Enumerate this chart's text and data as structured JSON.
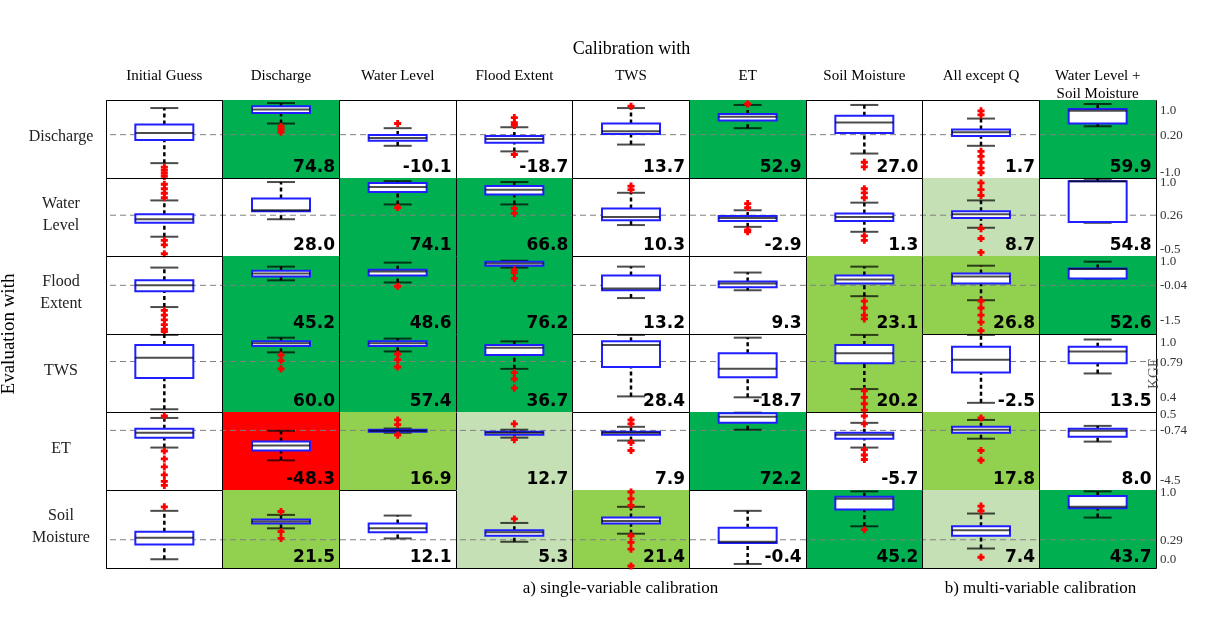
{
  "chart_data": [
    {
      "type": "box",
      "title": "Discharge",
      "xlabel": "Calibration with",
      "categories": [
        "Initial Guess",
        "Discharge",
        "Water Level",
        "Flood Extent",
        "TWS",
        "ET",
        "Soil Moisture",
        "All except Q",
        "Water Level + Soil Moisture"
      ],
      "ylim": [
        -1.2,
        1.32
      ],
      "yticks": [
        {
          "value": -1,
          "label": "-1.0"
        },
        {
          "value": 0.2,
          "label": "0.20"
        },
        {
          "value": 1,
          "label": "1.0"
        }
      ],
      "grid": "x",
      "boxes": [
        {
          "low": -0.72,
          "q1": 0.03,
          "median": 0.25,
          "q3": 0.53,
          "high": 1.06,
          "outliers": [
            -0.85,
            -0.95,
            -1.05,
            -1.15
          ]
        },
        {
          "low": 0.56,
          "q1": 0.9,
          "median": 1.01,
          "q3": 1.12,
          "high": 1.22,
          "outliers": [
            0.47,
            0.38,
            0.28
          ]
        },
        {
          "low": -0.16,
          "q1": 0.0,
          "median": 0.09,
          "q3": 0.19,
          "high": 0.41,
          "outliers": [
            0.56
          ]
        },
        {
          "low": -0.34,
          "q1": -0.06,
          "median": 0.06,
          "q3": 0.16,
          "high": 0.44,
          "outliers": [
            0.75,
            0.59,
            0.5,
            -0.44
          ]
        },
        {
          "low": -0.12,
          "q1": 0.22,
          "median": 0.31,
          "q3": 0.56,
          "high": 1.06,
          "outliers": [
            1.12
          ]
        },
        {
          "low": 0.41,
          "q1": 0.66,
          "median": 0.78,
          "q3": 0.87,
          "high": 1.16,
          "outliers": [
            1.19
          ]
        },
        {
          "low": -0.41,
          "q1": 0.25,
          "median": 0.59,
          "q3": 0.81,
          "high": 1.16,
          "outliers": [
            -0.69,
            -0.84
          ]
        },
        {
          "low": -0.16,
          "q1": 0.16,
          "median": 0.28,
          "q3": 0.37,
          "high": 0.72,
          "outliers": [
            0.97,
            0.84,
            -0.34,
            -0.5,
            -0.69,
            -0.88,
            -1.03
          ]
        },
        {
          "low": 0.47,
          "q1": 0.56,
          "median": 0.97,
          "q3": 1.03,
          "high": 1.19
        }
      ],
      "ref_lines": [
        {
          "axis": "y",
          "value": 0.2,
          "color": "#808080",
          "line_style": "dashed"
        }
      ],
      "bands": [
        {
          "axis": "x",
          "from": "Discharge",
          "to": "Discharge",
          "color": "#00b050"
        },
        {
          "axis": "x",
          "from": "ET",
          "to": "ET",
          "color": "#00b050"
        },
        {
          "axis": "x",
          "from": "Water Level + Soil Moisture",
          "to": "Water Level + Soil Moisture",
          "color": "#00b050"
        }
      ],
      "annotations": [
        "74.8",
        "-10.1",
        "-18.7",
        "13.7",
        "52.9",
        "27.0",
        "1.7",
        "59.9",
        "Evaluation with"
      ]
    },
    {
      "type": "box",
      "title": "Water Level",
      "tick_labels": "y",
      "categories": [
        "Initial Guess",
        "Discharge",
        "Water Level",
        "Flood Extent",
        "TWS",
        "ET",
        "Soil Moisture",
        "All except Q",
        "Water Level + Soil Moisture"
      ],
      "ylim": [
        -0.65,
        1.09
      ],
      "yticks": [
        -0.5,
        0.26,
        {
          "value": 1,
          "label": "1.0"
        }
      ],
      "grid": "x",
      "boxes": [
        {
          "low": -0.22,
          "q1": 0.09,
          "median": 0.17,
          "q3": 0.28,
          "high": 0.59,
          "outliers": [
            0.95,
            0.85,
            0.75,
            0.65,
            -0.3,
            -0.4,
            -0.6
          ]
        },
        {
          "low": 0.17,
          "q1": 0.35,
          "median": 0.37,
          "q3": 0.63,
          "high": 1.0
        },
        {
          "low": 0.5,
          "q1": 0.78,
          "median": 0.89,
          "q3": 0.98,
          "high": 1.02,
          "outliers": [
            0.43
          ]
        },
        {
          "low": 0.5,
          "q1": 0.72,
          "median": 0.83,
          "q3": 0.91,
          "high": 1.0,
          "outliers": [
            0.41,
            0.3
          ]
        },
        {
          "low": 0.04,
          "q1": 0.15,
          "median": 0.22,
          "q3": 0.41,
          "high": 0.76,
          "outliers": [
            0.91,
            0.83
          ]
        },
        {
          "low": 0.0,
          "q1": 0.13,
          "median": 0.2,
          "q3": 0.24,
          "high": 0.37,
          "outliers": [
            0.52,
            0.43,
            -0.07,
            -0.11
          ]
        },
        {
          "low": -0.11,
          "q1": 0.13,
          "median": 0.22,
          "q3": 0.3,
          "high": 0.54,
          "outliers": [
            0.85,
            0.76,
            0.65,
            -0.2,
            -0.3
          ]
        },
        {
          "low": -0.02,
          "q1": 0.2,
          "median": 0.28,
          "q3": 0.35,
          "high": 0.59,
          "outliers": [
            0.98,
            0.83,
            0.7,
            -0.04,
            -0.26,
            -0.57
          ]
        },
        {
          "low": 0.09,
          "q1": 0.11,
          "median": 1.02,
          "q3": 1.02,
          "high": 1.07
        }
      ],
      "ref_lines": [
        {
          "axis": "y",
          "value": 0.26,
          "color": "#808080",
          "line_style": "dashed"
        }
      ],
      "bands": [
        {
          "axis": "x",
          "from": "Water Level",
          "to": "Water Level",
          "color": "#00b050"
        },
        {
          "axis": "x",
          "from": "Flood Extent",
          "to": "Flood Extent",
          "color": "#00b050"
        },
        {
          "axis": "x",
          "from": "All except Q",
          "to": "All except Q",
          "color": "#c5e0b4"
        }
      ],
      "annotations": [
        "28.0",
        "74.1",
        "66.8",
        "10.3",
        "-2.9",
        "1.3",
        "8.7",
        "54.8"
      ]
    },
    {
      "type": "box",
      "title": "Flood Extent",
      "tick_labels": "y",
      "categories": [
        "Initial Guess",
        "Discharge",
        "Water Level",
        "Flood Extent",
        "TWS",
        "ET",
        "Soil Moisture",
        "All except Q",
        "Water Level + Soil Moisture"
      ],
      "ylim": [
        -2.1,
        1.2
      ],
      "yticks": [
        -1.5,
        -0.04,
        {
          "value": 1,
          "label": "1.0"
        }
      ],
      "grid": "x",
      "boxes": [
        {
          "low": -0.96,
          "q1": -0.29,
          "median": -0.04,
          "q3": 0.17,
          "high": 0.71,
          "outliers": [
            -1.1,
            -1.3,
            -1.5,
            -1.7,
            -1.9,
            -2.0
          ]
        },
        {
          "low": 0.17,
          "q1": 0.33,
          "median": 0.46,
          "q3": 0.58,
          "high": 0.75
        },
        {
          "low": 0.08,
          "q1": 0.38,
          "median": 0.54,
          "q3": 0.62,
          "high": 0.92,
          "outliers": [
            -0.08
          ]
        },
        {
          "low": 0.71,
          "q1": 0.79,
          "median": 0.88,
          "q3": 0.96,
          "high": 1.0,
          "outliers": [
            0.62,
            0.5,
            0.25
          ]
        },
        {
          "low": -0.58,
          "q1": -0.25,
          "median": -0.17,
          "q3": 0.38,
          "high": 0.75
        },
        {
          "low": -0.25,
          "q1": -0.12,
          "median": 0.04,
          "q3": 0.12,
          "high": 0.5
        },
        {
          "low": -0.5,
          "q1": 0.04,
          "median": 0.21,
          "q3": 0.38,
          "high": 0.75,
          "outliers": [
            -0.71,
            -1.0,
            -1.3,
            -1.46
          ]
        },
        {
          "low": -0.67,
          "q1": 0.04,
          "median": 0.33,
          "q3": 0.46,
          "high": 0.79,
          "outliers": [
            -0.71,
            -1.0,
            -1.3,
            -1.6,
            -1.96
          ]
        },
        {
          "low": 0.25,
          "q1": 0.25,
          "median": 0.65,
          "q3": 0.67,
          "high": 0.96
        }
      ],
      "ref_lines": [
        {
          "axis": "y",
          "value": -0.04,
          "color": "#808080",
          "line_style": "dashed"
        }
      ],
      "bands": [
        {
          "axis": "x",
          "from": "Discharge",
          "to": "Discharge",
          "color": "#00b050"
        },
        {
          "axis": "x",
          "from": "Water Level",
          "to": "Water Level",
          "color": "#00b050"
        },
        {
          "axis": "x",
          "from": "Flood Extent",
          "to": "Flood Extent",
          "color": "#00b050"
        },
        {
          "axis": "x",
          "from": "Soil Moisture",
          "to": "Soil Moisture",
          "color": "#92d050"
        },
        {
          "axis": "x",
          "from": "All except Q",
          "to": "All except Q",
          "color": "#92d050"
        },
        {
          "axis": "x",
          "from": "Water Level + Soil Moisture",
          "to": "Water Level + Soil Moisture",
          "color": "#00b050"
        }
      ],
      "annotations": [
        "45.2",
        "48.6",
        "76.2",
        "13.2",
        "9.3",
        "23.1",
        "26.8",
        "52.6"
      ]
    },
    {
      "type": "box",
      "title": "TWS",
      "ylabel": "KGE",
      "tick_labels": "y",
      "categories": [
        "Initial Guess",
        "Discharge",
        "Water Level",
        "Flood Extent",
        "TWS",
        "ET",
        "Soil Moisture",
        "All except Q",
        "Water Level + Soil Moisture"
      ],
      "ylim": [
        0.24,
        1.09
      ],
      "yticks": [
        0.4,
        0.79,
        {
          "value": 1,
          "label": "1.0"
        }
      ],
      "grid": "x",
      "boxes": [
        {
          "low": 0.27,
          "q1": 0.61,
          "median": 0.83,
          "q3": 0.97,
          "high": 1.08
        },
        {
          "low": 0.89,
          "q1": 0.96,
          "median": 0.99,
          "q3": 1.01,
          "high": 1.05,
          "outliers": [
            0.86,
            0.8,
            0.71
          ]
        },
        {
          "low": 0.9,
          "q1": 0.96,
          "median": 0.99,
          "q3": 1.01,
          "high": 1.04,
          "outliers": [
            0.87,
            0.81,
            0.73
          ]
        },
        {
          "low": 0.71,
          "q1": 0.86,
          "median": 0.94,
          "q3": 0.97,
          "high": 1.01,
          "outliers": [
            0.67,
            0.6,
            0.5
          ]
        },
        {
          "low": 0.41,
          "q1": 0.73,
          "median": 0.97,
          "q3": 1.01,
          "high": 1.08
        },
        {
          "low": 0.4,
          "q1": 0.62,
          "median": 0.71,
          "q3": 0.88,
          "high": 1.05
        },
        {
          "low": 0.49,
          "q1": 0.77,
          "median": 0.88,
          "q3": 0.97,
          "high": 1.08,
          "outliers": [
            0.47,
            0.4,
            0.33,
            0.26
          ]
        },
        {
          "low": 0.34,
          "q1": 0.67,
          "median": 0.81,
          "q3": 0.95,
          "high": 1.08
        },
        {
          "low": 0.66,
          "q1": 0.77,
          "median": 0.9,
          "q3": 0.95,
          "high": 1.03
        }
      ],
      "ref_lines": [
        {
          "axis": "y",
          "value": 0.79,
          "color": "#808080",
          "line_style": "dashed"
        }
      ],
      "bands": [
        {
          "axis": "x",
          "from": "Discharge",
          "to": "Discharge",
          "color": "#00b050"
        },
        {
          "axis": "x",
          "from": "Water Level",
          "to": "Water Level",
          "color": "#00b050"
        },
        {
          "axis": "x",
          "from": "Flood Extent",
          "to": "Flood Extent",
          "color": "#00b050"
        },
        {
          "axis": "x",
          "from": "Soil Moisture",
          "to": "Soil Moisture",
          "color": "#92d050"
        }
      ],
      "annotations": [
        "60.0",
        "57.4",
        "36.7",
        "28.4",
        "-18.7",
        "20.2",
        "-2.5",
        "13.5"
      ]
    },
    {
      "type": "box",
      "title": "ET",
      "tick_labels": "y",
      "categories": [
        "Initial Guess",
        "Discharge",
        "Water Level",
        "Flood Extent",
        "TWS",
        "ET",
        "Soil Moisture",
        "All except Q",
        "Water Level + Soil Moisture"
      ],
      "ylim": [
        -5.25,
        0.65
      ],
      "yticks": [
        -4.5,
        -0.74,
        0.5
      ],
      "grid": "x",
      "boxes": [
        {
          "low": -2.04,
          "q1": -1.29,
          "median": -0.92,
          "q3": -0.62,
          "high": 0.2,
          "outliers": [
            0.35,
            -2.3,
            -2.9,
            -3.5,
            -4.1,
            -4.6,
            -4.9
          ]
        },
        {
          "low": -3.01,
          "q1": -2.26,
          "median": -1.89,
          "q3": -1.59,
          "high": -0.77,
          "outliers": [
            -3.3
          ]
        },
        {
          "low": -0.92,
          "q1": -0.85,
          "median": -0.77,
          "q3": -0.7,
          "high": -0.6,
          "outliers": [
            0.05,
            -0.3,
            -1.1
          ]
        },
        {
          "low": -1.29,
          "q1": -1.07,
          "median": -0.92,
          "q3": -0.84,
          "high": -0.69,
          "outliers": [
            -0.25,
            -1.44
          ]
        },
        {
          "low": -1.51,
          "q1": -1.07,
          "median": -0.92,
          "q3": -0.84,
          "high": -0.47,
          "outliers": [
            0.05,
            -0.25,
            -1.66,
            -2.26
          ]
        },
        {
          "low": -0.69,
          "q1": -0.17,
          "median": 0.3,
          "q3": 0.55,
          "high": 0.6
        },
        {
          "low": -2.04,
          "q1": -1.37,
          "median": -1.07,
          "q3": -0.92,
          "high": -0.17,
          "outliers": [
            0.35,
            -0.25,
            -2.19,
            -2.6,
            -2.94
          ]
        },
        {
          "low": -1.37,
          "q1": -0.92,
          "median": -0.69,
          "q3": -0.47,
          "high": 0.05,
          "outliers": [
            0.2,
            -2.26,
            -3.0
          ]
        },
        {
          "low": -1.59,
          "q1": -1.22,
          "median": -0.77,
          "q3": -0.62,
          "high": -0.4
        }
      ],
      "ref_lines": [
        {
          "axis": "y",
          "value": -0.74,
          "color": "#808080",
          "line_style": "dashed"
        }
      ],
      "bands": [
        {
          "axis": "x",
          "from": "Discharge",
          "to": "Discharge",
          "color": "#ff0000"
        },
        {
          "axis": "x",
          "from": "Water Level",
          "to": "Water Level",
          "color": "#92d050"
        },
        {
          "axis": "x",
          "from": "Flood Extent",
          "to": "Flood Extent",
          "color": "#c5e0b4"
        },
        {
          "axis": "x",
          "from": "ET",
          "to": "ET",
          "color": "#00b050"
        },
        {
          "axis": "x",
          "from": "All except Q",
          "to": "All except Q",
          "color": "#92d050"
        }
      ],
      "annotations": [
        "-48.3",
        "16.9",
        "12.7",
        "7.9",
        "72.2",
        "-5.7",
        "17.8",
        "8.0"
      ]
    },
    {
      "type": "box",
      "title": "Soil Moisture",
      "tick_labels": "y",
      "categories": [
        "Initial Guess",
        "Discharge",
        "Water Level",
        "Flood Extent",
        "TWS",
        "ET",
        "Soil Moisture",
        "All except Q",
        "Water Level + Soil Moisture"
      ],
      "ylim": [
        -0.13,
        1.03
      ],
      "yticks": [
        {
          "value": 0,
          "label": "0.0"
        },
        0.29,
        {
          "value": 1,
          "label": "1.0"
        }
      ],
      "grid": "x",
      "boxes": [
        {
          "low": 0.0,
          "q1": 0.22,
          "median": 0.32,
          "q3": 0.41,
          "high": 0.72,
          "outliers": [
            0.78
          ]
        },
        {
          "low": 0.46,
          "q1": 0.53,
          "median": 0.56,
          "q3": 0.59,
          "high": 0.66,
          "outliers": [
            0.71,
            0.41,
            0.31
          ]
        },
        {
          "low": 0.31,
          "q1": 0.4,
          "median": 0.46,
          "q3": 0.53,
          "high": 0.65
        },
        {
          "low": 0.26,
          "q1": 0.35,
          "median": 0.4,
          "q3": 0.43,
          "high": 0.54,
          "outliers": [
            0.6
          ]
        },
        {
          "low": 0.38,
          "q1": 0.53,
          "median": 0.57,
          "q3": 0.62,
          "high": 0.78,
          "outliers": [
            1.0,
            0.9,
            0.8,
            0.35,
            0.25,
            0.15,
            -0.1
          ]
        },
        {
          "low": -0.07,
          "q1": 0.24,
          "median": 0.26,
          "q3": 0.47,
          "high": 0.72
        },
        {
          "low": 0.49,
          "q1": 0.74,
          "median": 0.9,
          "q3": 0.93,
          "high": 1.01,
          "outliers": [
            0.44
          ]
        },
        {
          "low": 0.16,
          "q1": 0.35,
          "median": 0.43,
          "q3": 0.49,
          "high": 0.68,
          "outliers": [
            0.79,
            0.72,
            0.03
          ]
        },
        {
          "low": 0.62,
          "q1": 0.76,
          "median": 0.78,
          "q3": 0.94,
          "high": 1.01
        }
      ],
      "ref_lines": [
        {
          "axis": "y",
          "value": 0.29,
          "color": "#808080",
          "line_style": "dashed"
        }
      ],
      "bands": [
        {
          "axis": "x",
          "from": "Discharge",
          "to": "Discharge",
          "color": "#92d050"
        },
        {
          "axis": "x",
          "from": "Flood Extent",
          "to": "Flood Extent",
          "color": "#c5e0b4"
        },
        {
          "axis": "x",
          "from": "TWS",
          "to": "TWS",
          "color": "#92d050"
        },
        {
          "axis": "x",
          "from": "Soil Moisture",
          "to": "Soil Moisture",
          "color": "#00b050"
        },
        {
          "axis": "x",
          "from": "All except Q",
          "to": "All except Q",
          "color": "#c5e0b4"
        },
        {
          "axis": "x",
          "from": "Water Level + Soil Moisture",
          "to": "Water Level + Soil Moisture",
          "color": "#00b050"
        }
      ],
      "annotations": [
        "21.5",
        "12.1",
        "5.3",
        "21.4",
        "-0.4",
        "45.2",
        "7.4",
        "43.7",
        "a) single-variable calibration",
        "b) multi-variable calibration"
      ]
    }
  ]
}
